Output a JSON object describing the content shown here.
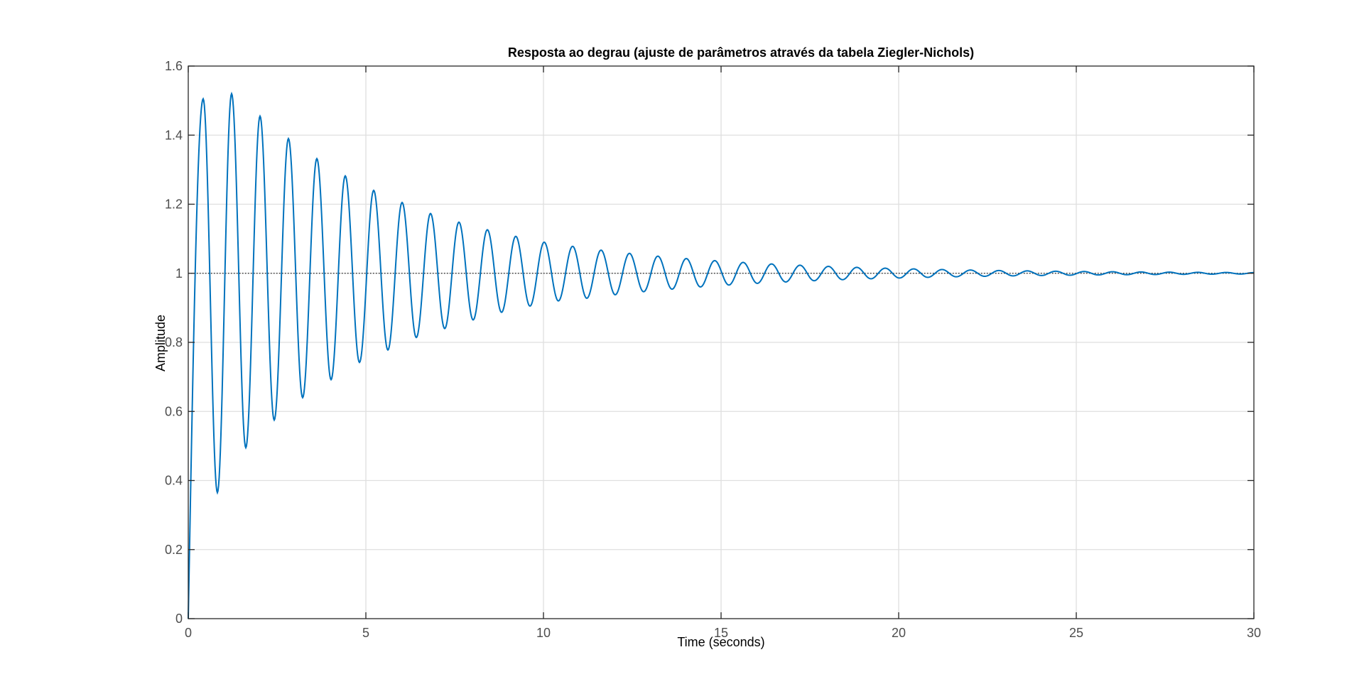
{
  "chart_data": {
    "type": "line",
    "title": "Resposta ao degrau (ajuste de parâmetros através da tabela Ziegler-Nichols)",
    "xlabel": "Time (seconds)",
    "ylabel": "Amplitude",
    "xlim": [
      0,
      30
    ],
    "ylim": [
      0,
      1.6
    ],
    "xticks": [
      0,
      5,
      10,
      15,
      20,
      25,
      30
    ],
    "xtick_labels": [
      "0",
      "5",
      "10",
      "15",
      "20",
      "25",
      "30"
    ],
    "yticks": [
      0,
      0.2,
      0.4,
      0.6,
      0.8,
      1.0,
      1.2,
      1.4,
      1.6
    ],
    "ytick_labels": [
      "0",
      "0.2",
      "0.4",
      "0.6",
      "0.8",
      "1",
      "1.2",
      "1.4",
      "1.6"
    ],
    "grid": true,
    "reference_line": {
      "y": 1.0,
      "style": "dotted",
      "color": "#1a1a1a"
    },
    "series": [
      {
        "color": "#0072bd",
        "description_of_shape": "oscillatory step response decaying to 1",
        "peaks": [
          {
            "x": 0.42,
            "y": 1.505
          },
          {
            "x": 1.22,
            "y": 1.52
          },
          {
            "x": 2.02,
            "y": 1.455
          },
          {
            "x": 2.82,
            "y": 1.39
          },
          {
            "x": 3.62,
            "y": 1.332
          },
          {
            "x": 4.42,
            "y": 1.282
          },
          {
            "x": 5.22,
            "y": 1.24
          },
          {
            "x": 6.02,
            "y": 1.205
          },
          {
            "x": 6.82,
            "y": 1.173
          },
          {
            "x": 7.62,
            "y": 1.148
          },
          {
            "x": 8.42,
            "y": 1.126
          },
          {
            "x": 9.22,
            "y": 1.107
          },
          {
            "x": 10.02,
            "y": 1.09
          },
          {
            "x": 10.82,
            "y": 1.078
          }
        ],
        "troughs": [
          {
            "x": 0.82,
            "y": 0.365
          },
          {
            "x": 1.62,
            "y": 0.495
          },
          {
            "x": 2.42,
            "y": 0.575
          },
          {
            "x": 3.22,
            "y": 0.64
          },
          {
            "x": 4.02,
            "y": 0.692
          },
          {
            "x": 4.82,
            "y": 0.742
          },
          {
            "x": 5.62,
            "y": 0.778
          },
          {
            "x": 6.42,
            "y": 0.814
          },
          {
            "x": 7.22,
            "y": 0.84
          },
          {
            "x": 8.02,
            "y": 0.865
          },
          {
            "x": 8.82,
            "y": 0.887
          },
          {
            "x": 9.62,
            "y": 0.905
          },
          {
            "x": 10.42,
            "y": 0.92
          }
        ],
        "final_value": 1.0
      }
    ]
  }
}
